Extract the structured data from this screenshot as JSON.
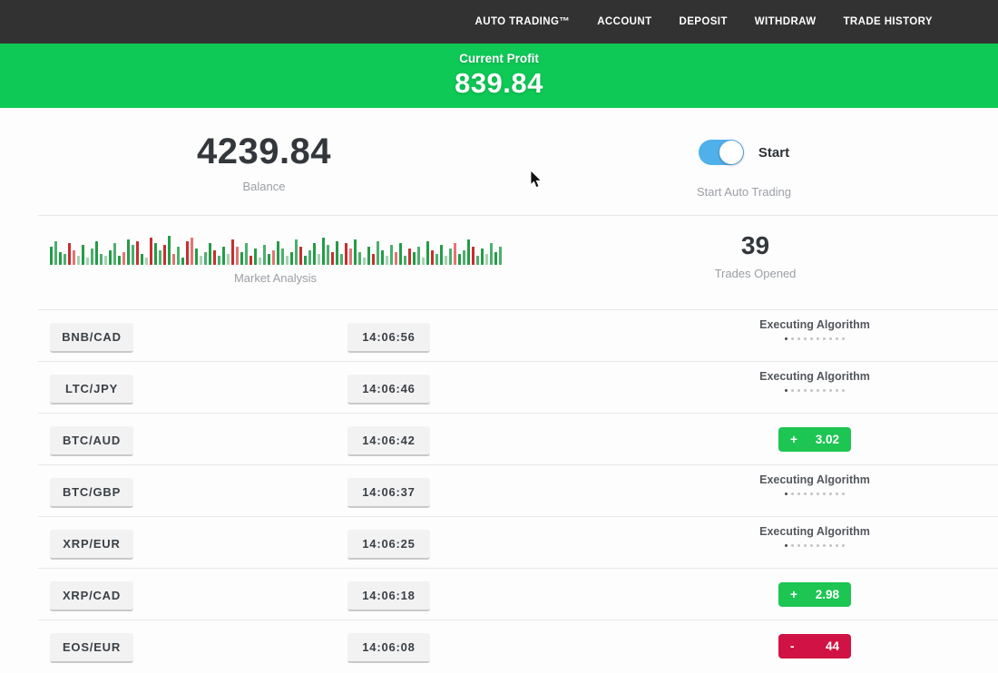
{
  "colors": {
    "nav_bg": "#323232",
    "banner_green": "#0ec956",
    "toggle_blue": "#4fb0ea",
    "badge_green": "#1dc553",
    "badge_red": "#d11244",
    "label_gray": "#9b9fa5"
  },
  "nav": {
    "items": [
      "AUTO TRADING™",
      "ACCOUNT",
      "DEPOSIT",
      "WITHDRAW",
      "TRADE HISTORY"
    ]
  },
  "profit_banner": {
    "label": "Current Profit",
    "value": "839.84"
  },
  "account": {
    "balance": "4239.84",
    "balance_label": "Balance",
    "toggle_on": true,
    "toggle_label": "Start",
    "toggle_sublabel": "Start Auto Trading"
  },
  "market": {
    "label": "Market Analysis",
    "trades_opened": "39",
    "trades_opened_label": "Trades Opened"
  },
  "chart_data": {
    "type": "bar",
    "title": "Market Analysis",
    "note": "decorative candlestick-style volume strip, no axes or tick labels",
    "palette": {
      "g1": "#259b48",
      "g2": "#4caf6e",
      "g3": "#a5d3b0",
      "r1": "#c62f2f",
      "r2": "#e57373"
    },
    "bars": [
      "g1:20",
      "g2:26",
      "g1:14",
      "g2:12",
      "r1:24",
      "r2:16",
      "g3:10",
      "g1:22",
      "g3:8",
      "g2:18",
      "g1:26",
      "g2:12",
      "g3:10",
      "g1:16",
      "g2:24",
      "g1:10",
      "r2:14",
      "g1:28",
      "g2:22",
      "r1:26",
      "g1:12",
      "g3:8",
      "r1:30",
      "g1:24",
      "g2:16",
      "r1:22",
      "g1:32",
      "r2:12",
      "g2:20",
      "g1:8",
      "r1:26",
      "r2:30",
      "g1:18",
      "g3:10",
      "g2:14",
      "g1:24",
      "r1:16",
      "g2:10",
      "g1:20",
      "g3:12",
      "r1:28",
      "r2:20",
      "g1:14",
      "g2:24",
      "r1:10",
      "g1:18",
      "g3:8",
      "g2:22",
      "g1:12",
      "r2:16",
      "g1:26",
      "g2:18",
      "g3:10",
      "g1:14",
      "g2:28",
      "r1:20",
      "g1:10",
      "g2:16",
      "g1:24",
      "g3:12",
      "g1:30",
      "g2:22",
      "r1:14",
      "g1:26",
      "g2:12",
      "r1:24",
      "r2:18",
      "g1:28",
      "g2:14",
      "g3:8",
      "g1:20",
      "r1:12",
      "g2:26",
      "g1:16",
      "g3:10",
      "g2:22",
      "r2:14",
      "g1:24",
      "g2:10",
      "r1:18",
      "g1:14",
      "g2:20",
      "g3:8",
      "g1:26",
      "r1:16",
      "g2:12",
      "g1:22",
      "g3:10",
      "g2:18",
      "r2:24",
      "g1:12",
      "g2:16",
      "g1:28",
      "r1:20",
      "g2:10",
      "g1:18",
      "g3:12",
      "g2:24",
      "g1:14",
      "g2:20"
    ]
  },
  "trades": [
    {
      "pair": "BNB/CAD",
      "time": "14:06:56",
      "status": {
        "type": "executing",
        "label": "Executing Algorithm"
      }
    },
    {
      "pair": "LTC/JPY",
      "time": "14:06:46",
      "status": {
        "type": "executing",
        "label": "Executing Algorithm"
      }
    },
    {
      "pair": "BTC/AUD",
      "time": "14:06:42",
      "status": {
        "type": "profit",
        "sign": "+",
        "value": "3.02"
      }
    },
    {
      "pair": "BTC/GBP",
      "time": "14:06:37",
      "status": {
        "type": "executing",
        "label": "Executing Algorithm"
      }
    },
    {
      "pair": "XRP/EUR",
      "time": "14:06:25",
      "status": {
        "type": "executing",
        "label": "Executing Algorithm"
      }
    },
    {
      "pair": "XRP/CAD",
      "time": "14:06:18",
      "status": {
        "type": "profit",
        "sign": "+",
        "value": "2.98"
      }
    },
    {
      "pair": "EOS/EUR",
      "time": "14:06:08",
      "status": {
        "type": "loss",
        "sign": "-",
        "value": "44"
      }
    }
  ]
}
